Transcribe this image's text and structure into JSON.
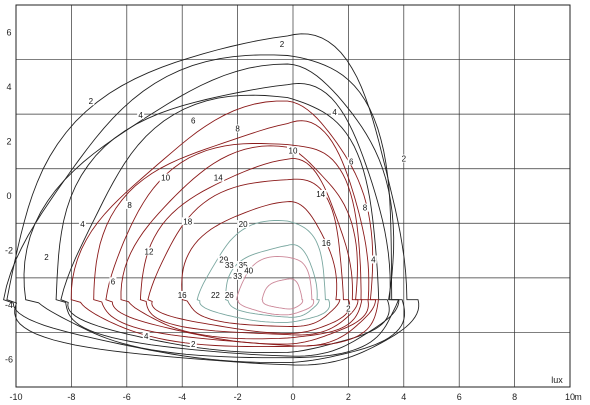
{
  "chart_data": {
    "type": "contour",
    "xlim": [
      -10,
      10
    ],
    "ylim": [
      -7,
      7
    ],
    "x_ticks": [
      -10,
      -8,
      -6,
      -4,
      -2,
      0,
      2,
      4,
      6,
      8,
      10
    ],
    "y_ticks": [
      6,
      4,
      2,
      0,
      -2,
      -4,
      -6
    ],
    "x_unit": "m",
    "value_unit": "lux",
    "grid": true,
    "source_point": [
      -0.2,
      -3.8
    ],
    "contours": [
      {
        "level": 2,
        "color": "#222222",
        "labels": [
          {
            "text": "2",
            "x": -0.4,
            "y": 5.5
          },
          {
            "text": "2",
            "x": -7.3,
            "y": 3.4
          },
          {
            "text": "2",
            "x": -8.9,
            "y": -2.3
          },
          {
            "text": "2",
            "x": 4.0,
            "y": 1.3
          },
          {
            "text": "2",
            "x": 2.0,
            "y": -4.2
          },
          {
            "text": "2",
            "x": -3.6,
            "y": -5.5
          }
        ]
      },
      {
        "level": 4,
        "color": "#222222",
        "labels": [
          {
            "text": "4",
            "x": -5.5,
            "y": 2.9
          },
          {
            "text": "4",
            "x": -7.6,
            "y": -1.1
          },
          {
            "text": "4",
            "x": 1.5,
            "y": 3.0
          },
          {
            "text": "4",
            "x": 2.9,
            "y": -2.4
          },
          {
            "text": "4",
            "x": -5.3,
            "y": -5.2
          }
        ]
      },
      {
        "level": 6,
        "color": "#222222",
        "labels": [
          {
            "text": "6",
            "x": -3.6,
            "y": 2.7
          },
          {
            "text": "6",
            "x": -6.5,
            "y": -3.2
          },
          {
            "text": "6",
            "x": 2.1,
            "y": 1.2
          }
        ]
      },
      {
        "level": 8,
        "color": "#222222",
        "labels": [
          {
            "text": "8",
            "x": -2.0,
            "y": 2.4
          },
          {
            "text": "8",
            "x": -5.9,
            "y": -0.4
          },
          {
            "text": "8",
            "x": 2.6,
            "y": -0.5
          }
        ]
      },
      {
        "level": 10,
        "color": "#222222",
        "labels": [
          {
            "text": "10",
            "x": 0.0,
            "y": 1.6
          },
          {
            "text": "10",
            "x": -4.6,
            "y": 0.6
          }
        ]
      },
      {
        "level": 12,
        "color": "#8b1a1a",
        "labels": [
          {
            "text": "12",
            "x": -5.2,
            "y": -2.1
          }
        ]
      },
      {
        "level": 14,
        "color": "#8b1a1a",
        "labels": [
          {
            "text": "14",
            "x": -2.7,
            "y": 0.6
          },
          {
            "text": "14",
            "x": 1.0,
            "y": 0.0
          }
        ]
      },
      {
        "level": 16,
        "color": "#8b1a1a",
        "labels": [
          {
            "text": "16",
            "x": 1.2,
            "y": -1.8
          },
          {
            "text": "16",
            "x": -4.0,
            "y": -3.7
          }
        ]
      },
      {
        "level": 18,
        "color": "#8b1a1a",
        "labels": [
          {
            "text": "18",
            "x": -3.8,
            "y": -1.0
          }
        ]
      },
      {
        "level": 20,
        "color": "#8b1a1a",
        "labels": [
          {
            "text": "20",
            "x": -1.8,
            "y": -1.1
          }
        ]
      },
      {
        "level": 22,
        "color": "#8b1a1a",
        "labels": [
          {
            "text": "22",
            "x": -2.8,
            "y": -3.7
          }
        ]
      },
      {
        "level": 26,
        "color": "#8b1a1a",
        "labels": [
          {
            "text": "26",
            "x": -2.3,
            "y": -3.7
          }
        ]
      },
      {
        "level": 29,
        "color": "#7aa7a0",
        "labels": [
          {
            "text": "29",
            "x": -2.5,
            "y": -2.4
          }
        ]
      },
      {
        "level": 33,
        "color": "#7aa7a0",
        "labels": [
          {
            "text": "33",
            "x": -2.3,
            "y": -2.6
          },
          {
            "text": "33",
            "x": -2.0,
            "y": -3.0
          }
        ]
      },
      {
        "level": 35,
        "color": "#cc8899",
        "labels": [
          {
            "text": "35",
            "x": -1.8,
            "y": -2.6
          }
        ]
      },
      {
        "level": 40,
        "color": "#cc8899",
        "labels": [
          {
            "text": "40",
            "x": -1.6,
            "y": -2.8
          }
        ]
      }
    ]
  }
}
